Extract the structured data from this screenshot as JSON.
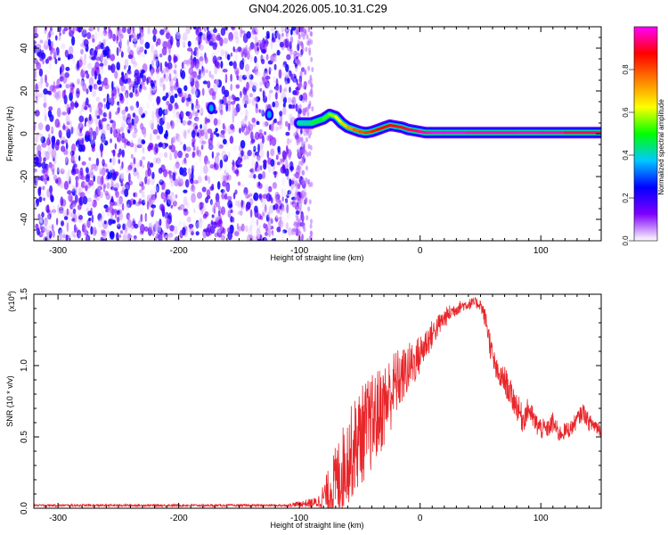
{
  "title": "GN04.2026.005.10.31.C29",
  "chart_data": [
    {
      "type": "heatmap",
      "name": "spectrogram",
      "xlabel": "Height of straight line (km)",
      "ylabel": "Frequency (Hz)",
      "xlim": [
        -320,
        150
      ],
      "ylim": [
        -50,
        50
      ],
      "xticks": [
        -300,
        -200,
        -100,
        0,
        100
      ],
      "yticks": [
        -40,
        -20,
        0,
        20,
        40
      ],
      "colorbar": {
        "label": "Normalized spectral amplitude",
        "range": [
          0,
          1
        ],
        "ticks": [
          0.0,
          0.2,
          0.4,
          0.6,
          0.8
        ],
        "tick_labels": [
          "0.0",
          "0.2",
          "0.4",
          "0.6",
          "0.8"
        ],
        "colors": [
          "#ffffff",
          "#7f00ff",
          "#0000ff",
          "#00c8ff",
          "#00ff00",
          "#ffff00",
          "#ff8000",
          "#ff0000",
          "#ff00ff"
        ]
      },
      "noise_region": {
        "x_range": [
          -320,
          -95
        ],
        "amplitude_range": [
          0.0,
          0.25
        ]
      },
      "ridge": {
        "x": [
          -100,
          -90,
          -80,
          -75,
          -70,
          -65,
          -60,
          -55,
          -50,
          -45,
          -40,
          -35,
          -30,
          -25,
          -20,
          -15,
          -10,
          -5,
          0,
          5,
          10,
          20,
          40,
          60,
          80,
          100,
          120,
          150
        ],
        "freq": [
          5,
          5,
          7,
          9,
          8,
          5,
          3,
          2,
          1,
          0.5,
          1,
          2,
          3,
          4,
          3.5,
          3,
          2,
          1.5,
          1,
          0.5,
          0.5,
          0.5,
          0.5,
          0.5,
          0.5,
          0.5,
          0.5,
          0.5
        ],
        "amp": [
          0.35,
          0.45,
          0.5,
          0.55,
          0.6,
          0.65,
          0.7,
          0.75,
          0.8,
          0.8,
          0.85,
          0.85,
          0.88,
          0.88,
          0.9,
          0.9,
          0.92,
          0.92,
          0.95,
          0.97,
          0.98,
          1.0,
          0.98,
          0.96,
          0.97,
          0.98,
          0.95,
          0.9
        ]
      },
      "blobs": [
        {
          "x": -173,
          "freq": 12,
          "amp": 0.35
        },
        {
          "x": -125,
          "freq": 9,
          "amp": 0.35
        }
      ]
    },
    {
      "type": "line",
      "name": "snr",
      "xlabel": "Height of straight line (km)",
      "ylabel": "SNR (10 * v/v)",
      "y_multiplier": "(x10",
      "y_multiplier_exp": "4",
      "xlim": [
        -320,
        150
      ],
      "ylim": [
        0,
        1.5
      ],
      "xticks": [
        -300,
        -200,
        -100,
        0,
        100
      ],
      "yticks": [
        0.0,
        0.5,
        1.0,
        1.5
      ],
      "ytick_labels": [
        "0.0",
        "0.5",
        "1.0",
        "1.5"
      ],
      "color": "#e8262a",
      "series": [
        {
          "name": "SNR",
          "x": [
            -320,
            -110,
            -100,
            -85,
            -80,
            -75,
            -70,
            -65,
            -60,
            -55,
            -50,
            -45,
            -40,
            -35,
            -30,
            -25,
            -20,
            -15,
            -10,
            -5,
            0,
            5,
            10,
            15,
            20,
            25,
            30,
            35,
            40,
            45,
            50,
            55,
            60,
            65,
            70,
            75,
            80,
            85,
            90,
            95,
            100,
            105,
            110,
            115,
            120,
            125,
            130,
            135,
            140,
            145,
            150
          ],
          "mean": [
            0.02,
            0.02,
            0.03,
            0.04,
            0.08,
            0.12,
            0.18,
            0.26,
            0.35,
            0.42,
            0.5,
            0.55,
            0.6,
            0.66,
            0.72,
            0.8,
            0.88,
            0.92,
            0.98,
            1.02,
            1.08,
            1.16,
            1.22,
            1.28,
            1.33,
            1.37,
            1.4,
            1.42,
            1.43,
            1.44,
            1.43,
            1.3,
            1.05,
            0.92,
            0.9,
            0.8,
            0.72,
            0.62,
            0.7,
            0.6,
            0.56,
            0.55,
            0.6,
            0.52,
            0.54,
            0.56,
            0.62,
            0.68,
            0.6,
            0.58,
            0.55
          ],
          "spread": [
            0.008,
            0.008,
            0.02,
            0.04,
            0.1,
            0.18,
            0.26,
            0.3,
            0.32,
            0.34,
            0.35,
            0.35,
            0.34,
            0.32,
            0.3,
            0.28,
            0.24,
            0.2,
            0.18,
            0.16,
            0.14,
            0.12,
            0.1,
            0.08,
            0.07,
            0.06,
            0.05,
            0.04,
            0.04,
            0.04,
            0.04,
            0.08,
            0.1,
            0.08,
            0.1,
            0.1,
            0.1,
            0.1,
            0.08,
            0.08,
            0.08,
            0.06,
            0.08,
            0.06,
            0.06,
            0.06,
            0.06,
            0.06,
            0.06,
            0.06,
            0.06
          ]
        }
      ]
    }
  ]
}
